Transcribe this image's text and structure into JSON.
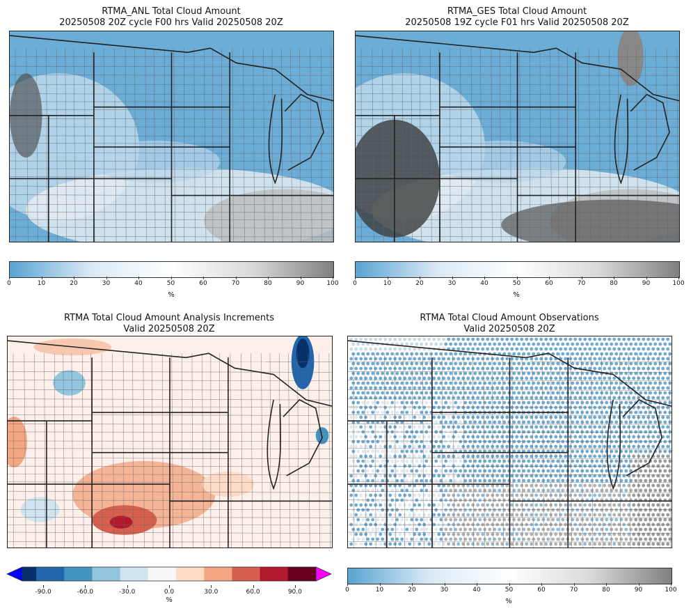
{
  "panels": [
    {
      "title_line1": "RTMA_ANL Total Cloud Amount",
      "title_line2": "20250508 20Z cycle F00 hrs Valid 20250508 20Z",
      "type": "cloud_amount"
    },
    {
      "title_line1": "RTMA_GES Total Cloud Amount",
      "title_line2": "20250508 19Z cycle F01 hrs Valid 20250508 20Z",
      "type": "cloud_amount"
    },
    {
      "title_line1": "RTMA Total Cloud Amount Analysis Increments",
      "title_line2": "Valid 20250508 20Z",
      "type": "increment"
    },
    {
      "title_line1": "RTMA Total Cloud Amount Observations",
      "title_line2": "Valid 20250508 20Z",
      "type": "observations"
    }
  ],
  "colorbars": {
    "cloud": {
      "unit": "%",
      "ticks": [
        "0",
        "10",
        "20",
        "30",
        "40",
        "50",
        "60",
        "70",
        "80",
        "90",
        "100"
      ],
      "colors": [
        "#5aa3d2",
        "#d9e9f5",
        "#ffffff",
        "#d9d9d9",
        "#808080"
      ]
    },
    "increment": {
      "unit": "%",
      "ticks": [
        "-90.0",
        "-60.0",
        "-30.0",
        "0.0",
        "30.0",
        "60.0",
        "90.0"
      ],
      "range": [
        -105,
        105
      ],
      "under_color": "#0000ff",
      "over_color": "#ff00ff",
      "colors": [
        "#08306b",
        "#2166ac",
        "#4393c3",
        "#92c5de",
        "#d1e5f0",
        "#f7f7f7",
        "#fddbc7",
        "#f4a582",
        "#d6604d",
        "#b2182b",
        "#67001f"
      ]
    }
  }
}
